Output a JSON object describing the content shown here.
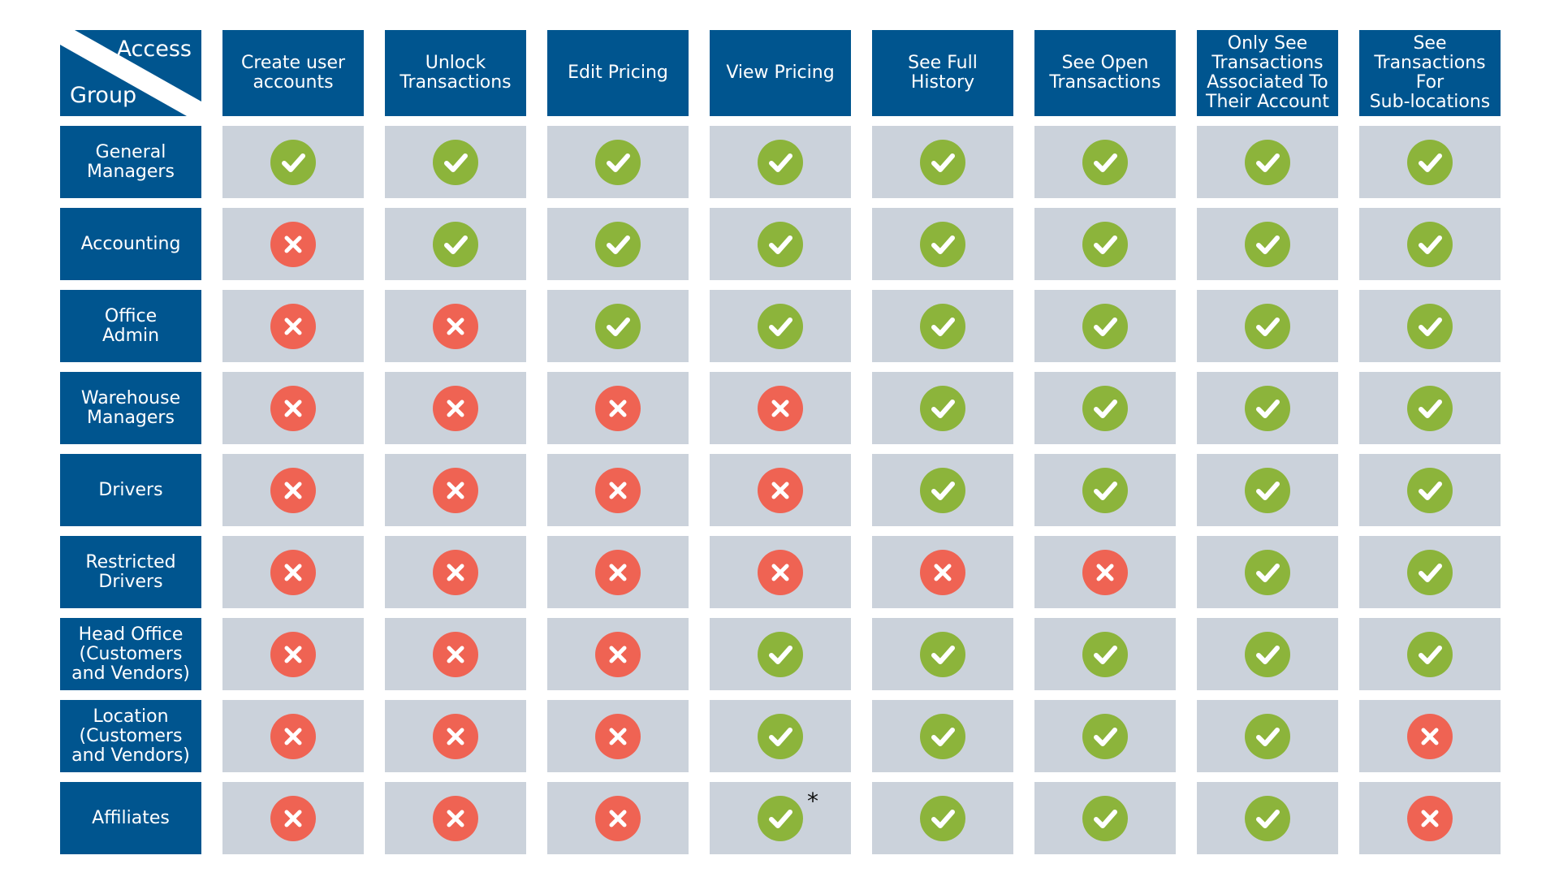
{
  "corner": {
    "top_label": "Access",
    "bottom_label": "Group"
  },
  "columns": [
    "Create user\naccounts",
    "Unlock\nTransactions",
    "Edit Pricing",
    "View Pricing",
    "See Full\nHistory",
    "See Open\nTransactions",
    "Only See\nTransactions\nAssociated To\nTheir Account",
    "See\nTransactions\nFor\nSub-locations"
  ],
  "rows": [
    {
      "group": "General\nManagers",
      "access": [
        "yes",
        "yes",
        "yes",
        "yes",
        "yes",
        "yes",
        "yes",
        "yes"
      ]
    },
    {
      "group": "Accounting",
      "access": [
        "no",
        "yes",
        "yes",
        "yes",
        "yes",
        "yes",
        "yes",
        "yes"
      ]
    },
    {
      "group": "Office\nAdmin",
      "access": [
        "no",
        "no",
        "yes",
        "yes",
        "yes",
        "yes",
        "yes",
        "yes"
      ]
    },
    {
      "group": "Warehouse\nManagers",
      "access": [
        "no",
        "no",
        "no",
        "no",
        "yes",
        "yes",
        "yes",
        "yes"
      ]
    },
    {
      "group": "Drivers",
      "access": [
        "no",
        "no",
        "no",
        "no",
        "yes",
        "yes",
        "yes",
        "yes"
      ]
    },
    {
      "group": "Restricted\nDrivers",
      "access": [
        "no",
        "no",
        "no",
        "no",
        "no",
        "no",
        "yes",
        "yes"
      ]
    },
    {
      "group": "Head Office\n(Customers\nand Vendors)",
      "access": [
        "no",
        "no",
        "no",
        "yes",
        "yes",
        "yes",
        "yes",
        "yes"
      ]
    },
    {
      "group": "Location\n(Customers\nand Vendors)",
      "access": [
        "no",
        "no",
        "no",
        "yes",
        "yes",
        "yes",
        "yes",
        "no"
      ]
    },
    {
      "group": "Affiliates",
      "access": [
        "no",
        "no",
        "no",
        "yes",
        "yes",
        "yes",
        "yes",
        "no"
      ]
    }
  ],
  "footnote_marker": {
    "row": 8,
    "col": 3,
    "symbol": "*"
  },
  "icons": {
    "yes": "check-icon",
    "no": "cross-icon"
  },
  "colors": {
    "header_bg": "#00558f",
    "cell_bg": "#cbd2db",
    "yes": "#8cb43b",
    "no": "#ef6353"
  }
}
